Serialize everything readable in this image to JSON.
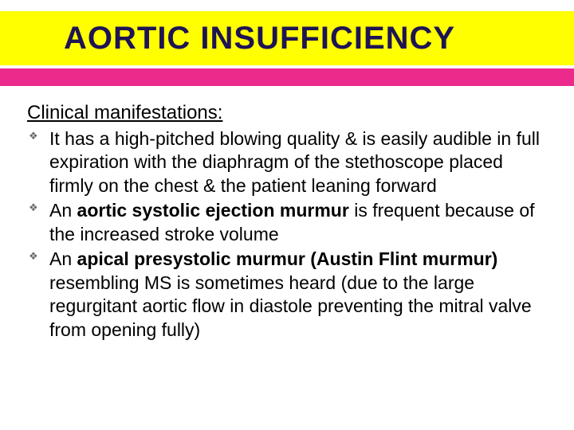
{
  "colors": {
    "title_bg": "#ffff00",
    "title_text": "#1e1454",
    "accent_bg": "#ec2a8b",
    "body_text": "#000000",
    "bullet": "#6a6a6a"
  },
  "title": "AORTIC INSUFFICIENCY",
  "heading": "Clinical manifestations:",
  "bullets": [
    {
      "pre": "It has a high-pitched blowing quality & is easily audible in full expiration with the diaphragm of the stethoscope placed firmly on the chest & the patient leaning forward",
      "bold": "",
      "post": ""
    },
    {
      "pre": "An ",
      "bold": "aortic systolic ejection murmur",
      "post": " is frequent because of the increased stroke volume"
    },
    {
      "pre": "An ",
      "bold": "apical presystolic murmur (Austin Flint murmur)",
      "post": " resembling MS is sometimes heard (due to the large regurgitant aortic flow in diastole preventing the mitral valve from opening fully)"
    }
  ]
}
